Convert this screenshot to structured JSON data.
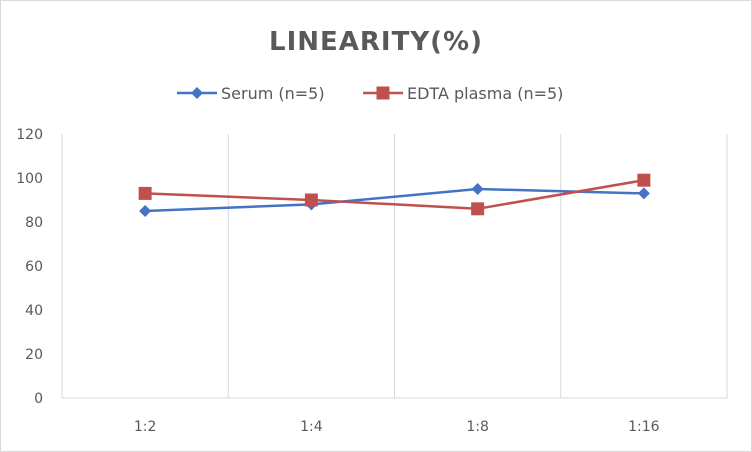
{
  "chart_data": {
    "type": "line",
    "title": "LINEARITY(%)",
    "categories": [
      "1:2",
      "1:4",
      "1:8",
      "1:16"
    ],
    "series": [
      {
        "name": "Serum (n=5)",
        "color": "#4472c4",
        "marker": "diamond",
        "values": [
          85,
          88,
          95,
          93
        ]
      },
      {
        "name": "EDTA plasma (n=5)",
        "color": "#c0504d",
        "marker": "square",
        "values": [
          93,
          90,
          86,
          99
        ]
      }
    ],
    "ylim": [
      0,
      120
    ],
    "yticks": [
      0,
      20,
      40,
      60,
      80,
      100,
      120
    ],
    "xlabel": "",
    "ylabel": "",
    "legend_position": "top",
    "grid": "vertical"
  }
}
